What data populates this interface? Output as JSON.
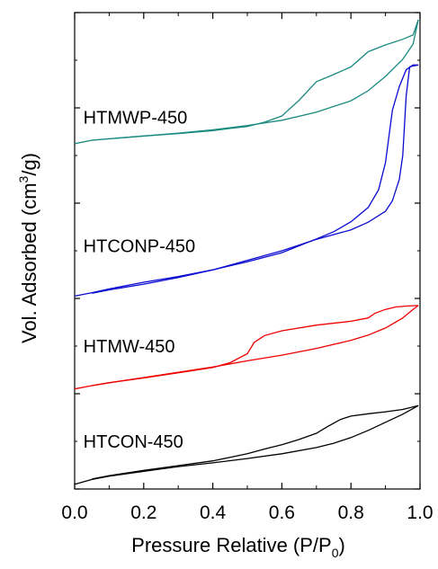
{
  "chart_data": {
    "type": "line",
    "xlabel": "Pressure Relative (P/P",
    "xlabel_sub": "0",
    "xlabel_end": ")",
    "ylabel_pre": "Vol. Adsorbed (cm",
    "ylabel_sup": "3",
    "ylabel_post": "/g)",
    "xlim": [
      0.0,
      1.0
    ],
    "x_ticks": [
      "0.0",
      "0.2",
      "0.4",
      "0.6",
      "0.8",
      "1.0"
    ],
    "y_tick_labels_shown": false,
    "grid": false,
    "legend": "none (inline series labels)",
    "y_units": "arbitrary (vertically offset curves, scale 0-100)",
    "ylim": [
      0,
      100
    ],
    "series": [
      {
        "name": "HTMWP-450",
        "label_pos": [
          0.02,
          78
        ],
        "color": "#1a8a80",
        "adsorption": [
          [
            0.0,
            72.5
          ],
          [
            0.05,
            73.2
          ],
          [
            0.1,
            73.5
          ],
          [
            0.2,
            74.1
          ],
          [
            0.3,
            74.7
          ],
          [
            0.4,
            75.4
          ],
          [
            0.5,
            76.3
          ],
          [
            0.6,
            77.4
          ],
          [
            0.7,
            79.1
          ],
          [
            0.8,
            81.5
          ],
          [
            0.85,
            83.6
          ],
          [
            0.9,
            86.6
          ],
          [
            0.95,
            90.2
          ],
          [
            0.98,
            93.4
          ],
          [
            0.995,
            98.5
          ]
        ],
        "desorption": [
          [
            0.995,
            98.5
          ],
          [
            0.98,
            95.3
          ],
          [
            0.95,
            94.4
          ],
          [
            0.9,
            93.2
          ],
          [
            0.85,
            91.8
          ],
          [
            0.8,
            88.6
          ],
          [
            0.75,
            87.0
          ],
          [
            0.7,
            85.5
          ],
          [
            0.65,
            81.6
          ],
          [
            0.6,
            78.3
          ],
          [
            0.55,
            77.0
          ],
          [
            0.5,
            76.1
          ],
          [
            0.45,
            75.7
          ],
          [
            0.4,
            75.2
          ],
          [
            0.3,
            74.6
          ],
          [
            0.2,
            74.1
          ],
          [
            0.1,
            73.5
          ],
          [
            0.05,
            73.2
          ]
        ]
      },
      {
        "name": "HTCONP-450",
        "label_pos": [
          0.02,
          51
        ],
        "color": "#0a0ad0",
        "adsorption": [
          [
            0.0,
            40.5
          ],
          [
            0.05,
            41.2
          ],
          [
            0.1,
            42.0
          ],
          [
            0.2,
            43.4
          ],
          [
            0.3,
            44.6
          ],
          [
            0.4,
            46.0
          ],
          [
            0.5,
            47.7
          ],
          [
            0.6,
            49.6
          ],
          [
            0.7,
            52.5
          ],
          [
            0.75,
            54.0
          ],
          [
            0.8,
            56.1
          ],
          [
            0.85,
            59.1
          ],
          [
            0.88,
            62.8
          ],
          [
            0.9,
            68.5
          ],
          [
            0.92,
            79.5
          ],
          [
            0.94,
            84.5
          ],
          [
            0.96,
            88.0
          ],
          [
            0.98,
            89.0
          ],
          [
            0.995,
            89.0
          ]
        ],
        "desorption": [
          [
            0.995,
            89.0
          ],
          [
            0.98,
            88.8
          ],
          [
            0.97,
            88.6
          ],
          [
            0.96,
            82.5
          ],
          [
            0.95,
            70.0
          ],
          [
            0.94,
            65.0
          ],
          [
            0.92,
            60.5
          ],
          [
            0.9,
            58.3
          ],
          [
            0.85,
            56.0
          ],
          [
            0.8,
            54.4
          ],
          [
            0.7,
            52.4
          ],
          [
            0.6,
            50.0
          ],
          [
            0.5,
            48.0
          ],
          [
            0.4,
            46.0
          ],
          [
            0.3,
            44.4
          ],
          [
            0.2,
            43.0
          ],
          [
            0.1,
            41.8
          ],
          [
            0.05,
            41.1
          ]
        ]
      },
      {
        "name": "HTMW-450",
        "label_pos": [
          0.02,
          30
        ],
        "color": "#ee0000",
        "adsorption": [
          [
            0.0,
            21.0
          ],
          [
            0.05,
            21.7
          ],
          [
            0.1,
            22.3
          ],
          [
            0.2,
            23.4
          ],
          [
            0.3,
            24.5
          ],
          [
            0.4,
            25.6
          ],
          [
            0.5,
            26.9
          ],
          [
            0.6,
            28.1
          ],
          [
            0.7,
            29.5
          ],
          [
            0.8,
            31.2
          ],
          [
            0.85,
            32.3
          ],
          [
            0.9,
            33.8
          ],
          [
            0.95,
            35.9
          ],
          [
            0.98,
            37.7
          ],
          [
            0.995,
            38.5
          ]
        ],
        "desorption": [
          [
            0.995,
            38.5
          ],
          [
            0.96,
            38.4
          ],
          [
            0.93,
            38.2
          ],
          [
            0.9,
            37.7
          ],
          [
            0.87,
            36.9
          ],
          [
            0.85,
            35.9
          ],
          [
            0.8,
            35.2
          ],
          [
            0.7,
            34.4
          ],
          [
            0.6,
            33.2
          ],
          [
            0.55,
            32.2
          ],
          [
            0.52,
            30.8
          ],
          [
            0.5,
            28.4
          ],
          [
            0.45,
            26.5
          ],
          [
            0.4,
            25.5
          ],
          [
            0.3,
            24.4
          ],
          [
            0.2,
            23.3
          ],
          [
            0.1,
            22.3
          ],
          [
            0.05,
            21.7
          ]
        ]
      },
      {
        "name": "HTCON-450",
        "label_pos": [
          0.02,
          10
        ],
        "color": "#000000",
        "adsorption": [
          [
            0.0,
            1.0
          ],
          [
            0.05,
            2.0
          ],
          [
            0.1,
            2.7
          ],
          [
            0.2,
            3.7
          ],
          [
            0.3,
            4.7
          ],
          [
            0.4,
            5.5
          ],
          [
            0.5,
            6.4
          ],
          [
            0.6,
            7.4
          ],
          [
            0.7,
            8.7
          ],
          [
            0.75,
            9.6
          ],
          [
            0.8,
            10.8
          ],
          [
            0.85,
            12.3
          ],
          [
            0.9,
            14.0
          ],
          [
            0.95,
            15.7
          ],
          [
            0.995,
            17.5
          ]
        ],
        "desorption": [
          [
            0.995,
            17.5
          ],
          [
            0.95,
            16.7
          ],
          [
            0.9,
            16.2
          ],
          [
            0.85,
            15.8
          ],
          [
            0.8,
            15.3
          ],
          [
            0.77,
            14.6
          ],
          [
            0.73,
            13.0
          ],
          [
            0.7,
            11.7
          ],
          [
            0.65,
            10.4
          ],
          [
            0.6,
            9.3
          ],
          [
            0.55,
            8.4
          ],
          [
            0.5,
            7.4
          ],
          [
            0.4,
            5.9
          ],
          [
            0.3,
            4.9
          ],
          [
            0.2,
            3.9
          ],
          [
            0.1,
            2.8
          ],
          [
            0.05,
            2.1
          ]
        ]
      }
    ]
  }
}
